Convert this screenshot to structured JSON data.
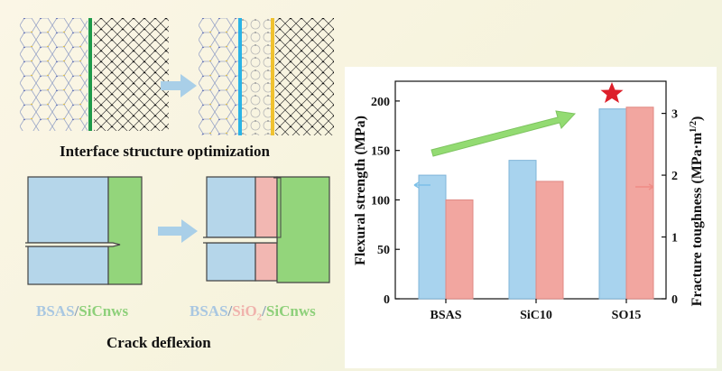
{
  "left_panel": {
    "caption_top": "Interface structure optimization",
    "caption_bottom": "Crack deflexion",
    "label_left": {
      "a": "BSAS",
      "sep": "/",
      "b": "SiCnws"
    },
    "label_right": {
      "a": "BSAS",
      "sep1": "/",
      "b": "SiO",
      "b_sub": "2",
      "sep2": "/",
      "c": "SiCnws"
    }
  },
  "colors": {
    "bsas_fill": "#b5d6ea",
    "sicnws_fill": "#93d57b",
    "sio2_fill": "#f2b7b2",
    "bar_blue": "#a8d3ee",
    "bar_red": "#f2a6a0",
    "arrow_green": "#8fdb6e",
    "star": "#dd1f2a"
  },
  "chart_data": {
    "type": "bar",
    "categories": [
      "BSAS",
      "SiC10",
      "SO15"
    ],
    "series": [
      {
        "axis": "left",
        "values": [
          125,
          140,
          192
        ]
      },
      {
        "axis": "right",
        "values": [
          1.6,
          1.9,
          3.1
        ]
      }
    ],
    "ylabel": "Flexural strength (MPa)",
    "ylabel_right": "Fracture toughness (MPa·m",
    "ylabel_right_sup": "1/2",
    "ylabel_right_end": ")",
    "ylim": [
      0,
      220
    ],
    "ylim_right": [
      0,
      3.52
    ],
    "yticks": [
      0,
      50,
      100,
      150,
      200
    ],
    "yticks_right": [
      0,
      1,
      2,
      3
    ],
    "grid": false
  }
}
